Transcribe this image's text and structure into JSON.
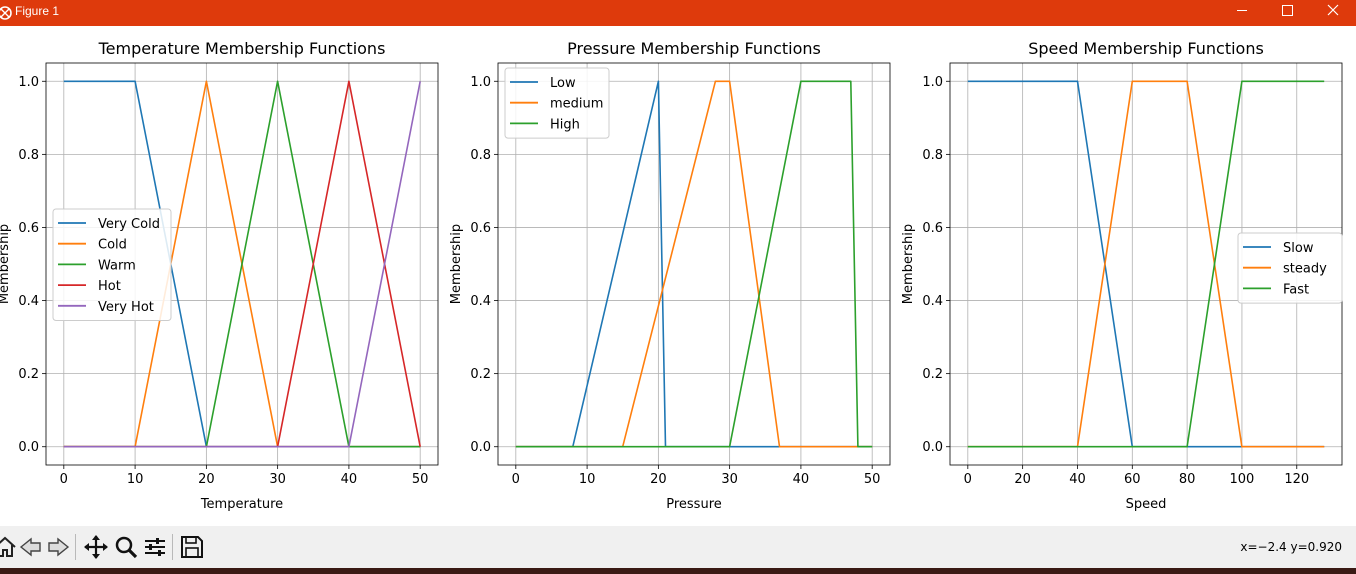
{
  "window": {
    "title": "Figure 1",
    "title_bar_color": "#de3a0c",
    "controls": [
      "minimize-icon",
      "maximize-icon",
      "close-icon"
    ]
  },
  "toolbar": {
    "buttons": [
      "home-icon",
      "back-arrow-icon",
      "forward-arrow-icon",
      "pan-icon",
      "zoom-icon",
      "configure-subplots-icon",
      "save-icon"
    ],
    "coordinates": "x=−2.4 y=0.920"
  },
  "chart_data": [
    {
      "type": "line",
      "title": "Temperature Membership Functions",
      "xlabel": "Temperature",
      "ylabel": "Membership",
      "xlim": [
        -2.5,
        52.5
      ],
      "ylim": [
        -0.05,
        1.05
      ],
      "xticks": [
        0,
        10,
        20,
        30,
        40,
        50
      ],
      "yticks": [
        0.0,
        0.2,
        0.4,
        0.6,
        0.8,
        1.0
      ],
      "grid": true,
      "legend_position": "center-left",
      "series": [
        {
          "name": "Very Cold",
          "color": "#1f77b4",
          "x": [
            0,
            10,
            20,
            50
          ],
          "y": [
            1,
            1,
            0,
            0
          ]
        },
        {
          "name": "Cold",
          "color": "#ff7f0e",
          "x": [
            0,
            10,
            20,
            30,
            50
          ],
          "y": [
            0,
            0,
            1,
            0,
            0
          ]
        },
        {
          "name": "Warm",
          "color": "#2ca02c",
          "x": [
            0,
            20,
            30,
            40,
            50
          ],
          "y": [
            0,
            0,
            1,
            0,
            0
          ]
        },
        {
          "name": "Hot",
          "color": "#d62728",
          "x": [
            0,
            30,
            40,
            50
          ],
          "y": [
            0,
            0,
            1,
            0
          ]
        },
        {
          "name": "Very Hot",
          "color": "#9467bd",
          "x": [
            0,
            40,
            50
          ],
          "y": [
            0,
            0,
            1
          ]
        }
      ]
    },
    {
      "type": "line",
      "title": "Pressure Membership Functions",
      "xlabel": "Pressure",
      "ylabel": "Membership",
      "xlim": [
        -2.5,
        52.5
      ],
      "ylim": [
        -0.05,
        1.05
      ],
      "xticks": [
        0,
        10,
        20,
        30,
        40,
        50
      ],
      "yticks": [
        0.0,
        0.2,
        0.4,
        0.6,
        0.8,
        1.0
      ],
      "grid": true,
      "legend_position": "upper-left",
      "series": [
        {
          "name": "Low",
          "color": "#1f77b4",
          "x": [
            0,
            8,
            20,
            21,
            50
          ],
          "y": [
            0,
            0,
            1,
            0,
            0
          ]
        },
        {
          "name": "medium",
          "color": "#ff7f0e",
          "x": [
            0,
            15,
            28,
            30,
            37,
            50
          ],
          "y": [
            0,
            0,
            1,
            1,
            0,
            0
          ]
        },
        {
          "name": "High",
          "color": "#2ca02c",
          "x": [
            0,
            30,
            40,
            47,
            48,
            50
          ],
          "y": [
            0,
            0,
            1,
            1,
            0,
            0
          ]
        }
      ]
    },
    {
      "type": "line",
      "title": "Speed Membership Functions",
      "xlabel": "Speed",
      "ylabel": "Membership",
      "xlim": [
        -6.5,
        136.5
      ],
      "ylim": [
        -0.05,
        1.05
      ],
      "xticks": [
        0,
        20,
        40,
        60,
        80,
        100,
        120
      ],
      "yticks": [
        0.0,
        0.2,
        0.4,
        0.6,
        0.8,
        1.0
      ],
      "grid": true,
      "legend_position": "center-right",
      "series": [
        {
          "name": "Slow",
          "color": "#1f77b4",
          "x": [
            0,
            40,
            60,
            130
          ],
          "y": [
            1,
            1,
            0,
            0
          ]
        },
        {
          "name": "steady",
          "color": "#ff7f0e",
          "x": [
            0,
            40,
            60,
            80,
            100,
            130
          ],
          "y": [
            0,
            0,
            1,
            1,
            0,
            0
          ]
        },
        {
          "name": "Fast",
          "color": "#2ca02c",
          "x": [
            0,
            80,
            100,
            130
          ],
          "y": [
            0,
            0,
            1,
            1
          ]
        }
      ]
    }
  ]
}
